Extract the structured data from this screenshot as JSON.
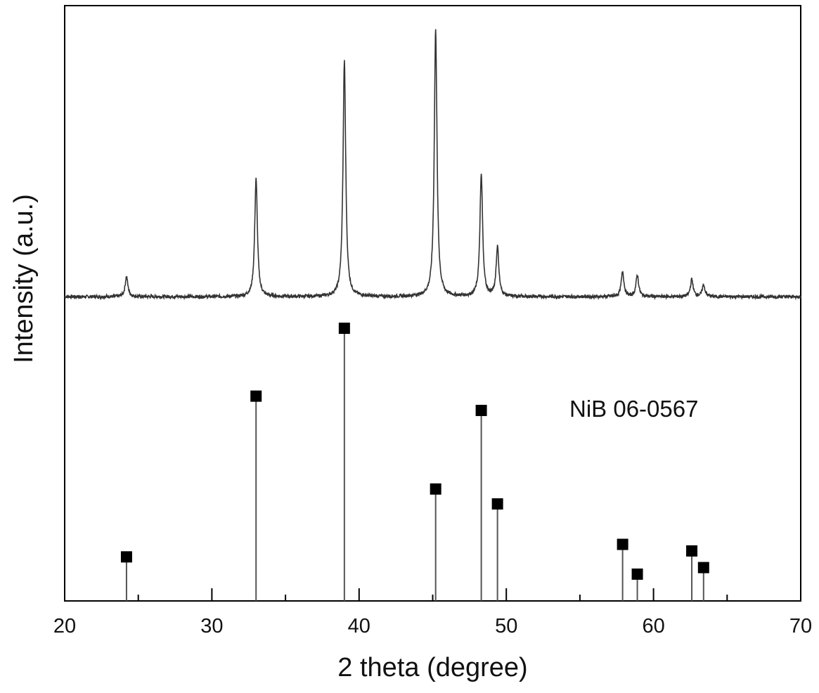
{
  "chart_data": {
    "type": "line",
    "xlabel": "2 theta (degree)",
    "ylabel": "Intensity (a.u.)",
    "xlim": [
      20,
      70
    ],
    "ylim": [
      0,
      100
    ],
    "y_ticks_shown": false,
    "x_major_ticks": [
      20,
      30,
      40,
      50,
      60,
      70
    ],
    "x_tick_labels": [
      "20",
      "30",
      "40",
      "50",
      "60",
      "70"
    ],
    "x_minor_ticks": [
      25,
      35,
      45,
      55,
      65
    ],
    "grid": false,
    "series": [
      {
        "kind": "xrd-pattern",
        "color": "#333333",
        "baseline": 51.1,
        "peaks": [
          {
            "x": 24.2,
            "height": 3.4
          },
          {
            "x": 33.0,
            "height": 19.8
          },
          {
            "x": 39.0,
            "height": 39.5
          },
          {
            "x": 45.2,
            "height": 45.1
          },
          {
            "x": 48.3,
            "height": 20.5
          },
          {
            "x": 49.4,
            "height": 8.3
          },
          {
            "x": 57.9,
            "height": 4.2
          },
          {
            "x": 58.9,
            "height": 3.6
          },
          {
            "x": 62.6,
            "height": 2.9
          },
          {
            "x": 63.4,
            "height": 2.0
          }
        ]
      },
      {
        "name": "NiB 06-0567",
        "kind": "reference-sticks",
        "color": "#555555",
        "marker": "square",
        "x": [
          24.2,
          33.0,
          39.0,
          45.2,
          48.3,
          49.4,
          57.9,
          58.9,
          62.6,
          63.4
        ],
        "values": [
          7.4,
          34.4,
          45.8,
          18.8,
          32.0,
          16.3,
          9.5,
          4.5,
          8.4,
          5.6
        ]
      }
    ],
    "annotations": [
      {
        "text": "NiB 06-0567"
      }
    ]
  }
}
